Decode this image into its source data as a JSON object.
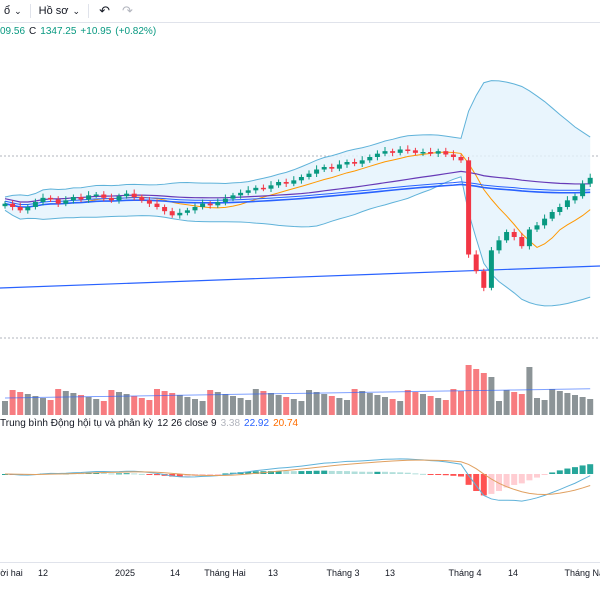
{
  "toolbar": {
    "item1_label": "ổ",
    "item2_label": "Hồ sơ",
    "undo_icon": "undo-arrow-icon",
    "redo_icon": "redo-arrow-icon"
  },
  "ohlc": {
    "low": "09.56",
    "close_label": "C",
    "close": "1347.25",
    "change": "+10.95",
    "change_pct": "(+0.82%)"
  },
  "macd_legend": {
    "title": "Trung bình Động hội tụ và phân kỳ",
    "params": "12 26 close 9",
    "v1": "3.38",
    "v2": "22.92",
    "v3": "20.74"
  },
  "x_axis_labels": [
    {
      "text": "rời hai"
    },
    {
      "text": "12"
    },
    {
      "text": "2025"
    },
    {
      "text": "14"
    },
    {
      "text": "Tháng Hai"
    },
    {
      "text": "13"
    },
    {
      "text": "Tháng 3"
    },
    {
      "text": "13"
    },
    {
      "text": "Tháng 4"
    },
    {
      "text": "14"
    },
    {
      "text": "Tháng Năm"
    }
  ],
  "colors": {
    "up": "#089981",
    "down": "#f23645",
    "vol_up": "#8c9497",
    "vol_down": "#f77c80",
    "bb_band": "#5fb2d9",
    "bb_fill": "#e3f2fd",
    "ma_fast": "#ff9800",
    "ma_blue": "#2962ff",
    "ma_purple": "#673ab7",
    "macd_line": "#2962ff",
    "signal_line": "#ff6d00",
    "hist_pos_strong": "#26a69a",
    "hist_pos_weak": "#b2dfdb",
    "hist_neg_strong": "#ff5252",
    "hist_neg_weak": "#ffcdd2"
  },
  "chart_data": {
    "type": "candlestick",
    "title": "",
    "note": "VN-Index style daily chart with Bollinger Bands, moving averages, volume and MACD",
    "candles_close": [
      1266,
      1262,
      1258,
      1262,
      1268,
      1273,
      1271,
      1266,
      1270,
      1274,
      1271,
      1276,
      1277,
      1273,
      1270,
      1275,
      1278,
      1274,
      1270,
      1266,
      1262,
      1257,
      1252,
      1255,
      1258,
      1262,
      1266,
      1264,
      1268,
      1272,
      1276,
      1279,
      1282,
      1285,
      1284,
      1288,
      1292,
      1290,
      1294,
      1298,
      1302,
      1307,
      1310,
      1308,
      1313,
      1316,
      1314,
      1318,
      1322,
      1326,
      1329,
      1327,
      1331,
      1330,
      1327,
      1328,
      1326,
      1329,
      1325,
      1322,
      1318,
      1205,
      1185,
      1165,
      1210,
      1222,
      1232,
      1226,
      1215,
      1235,
      1240,
      1248,
      1256,
      1262,
      1270,
      1275,
      1290,
      1297
    ]
  }
}
